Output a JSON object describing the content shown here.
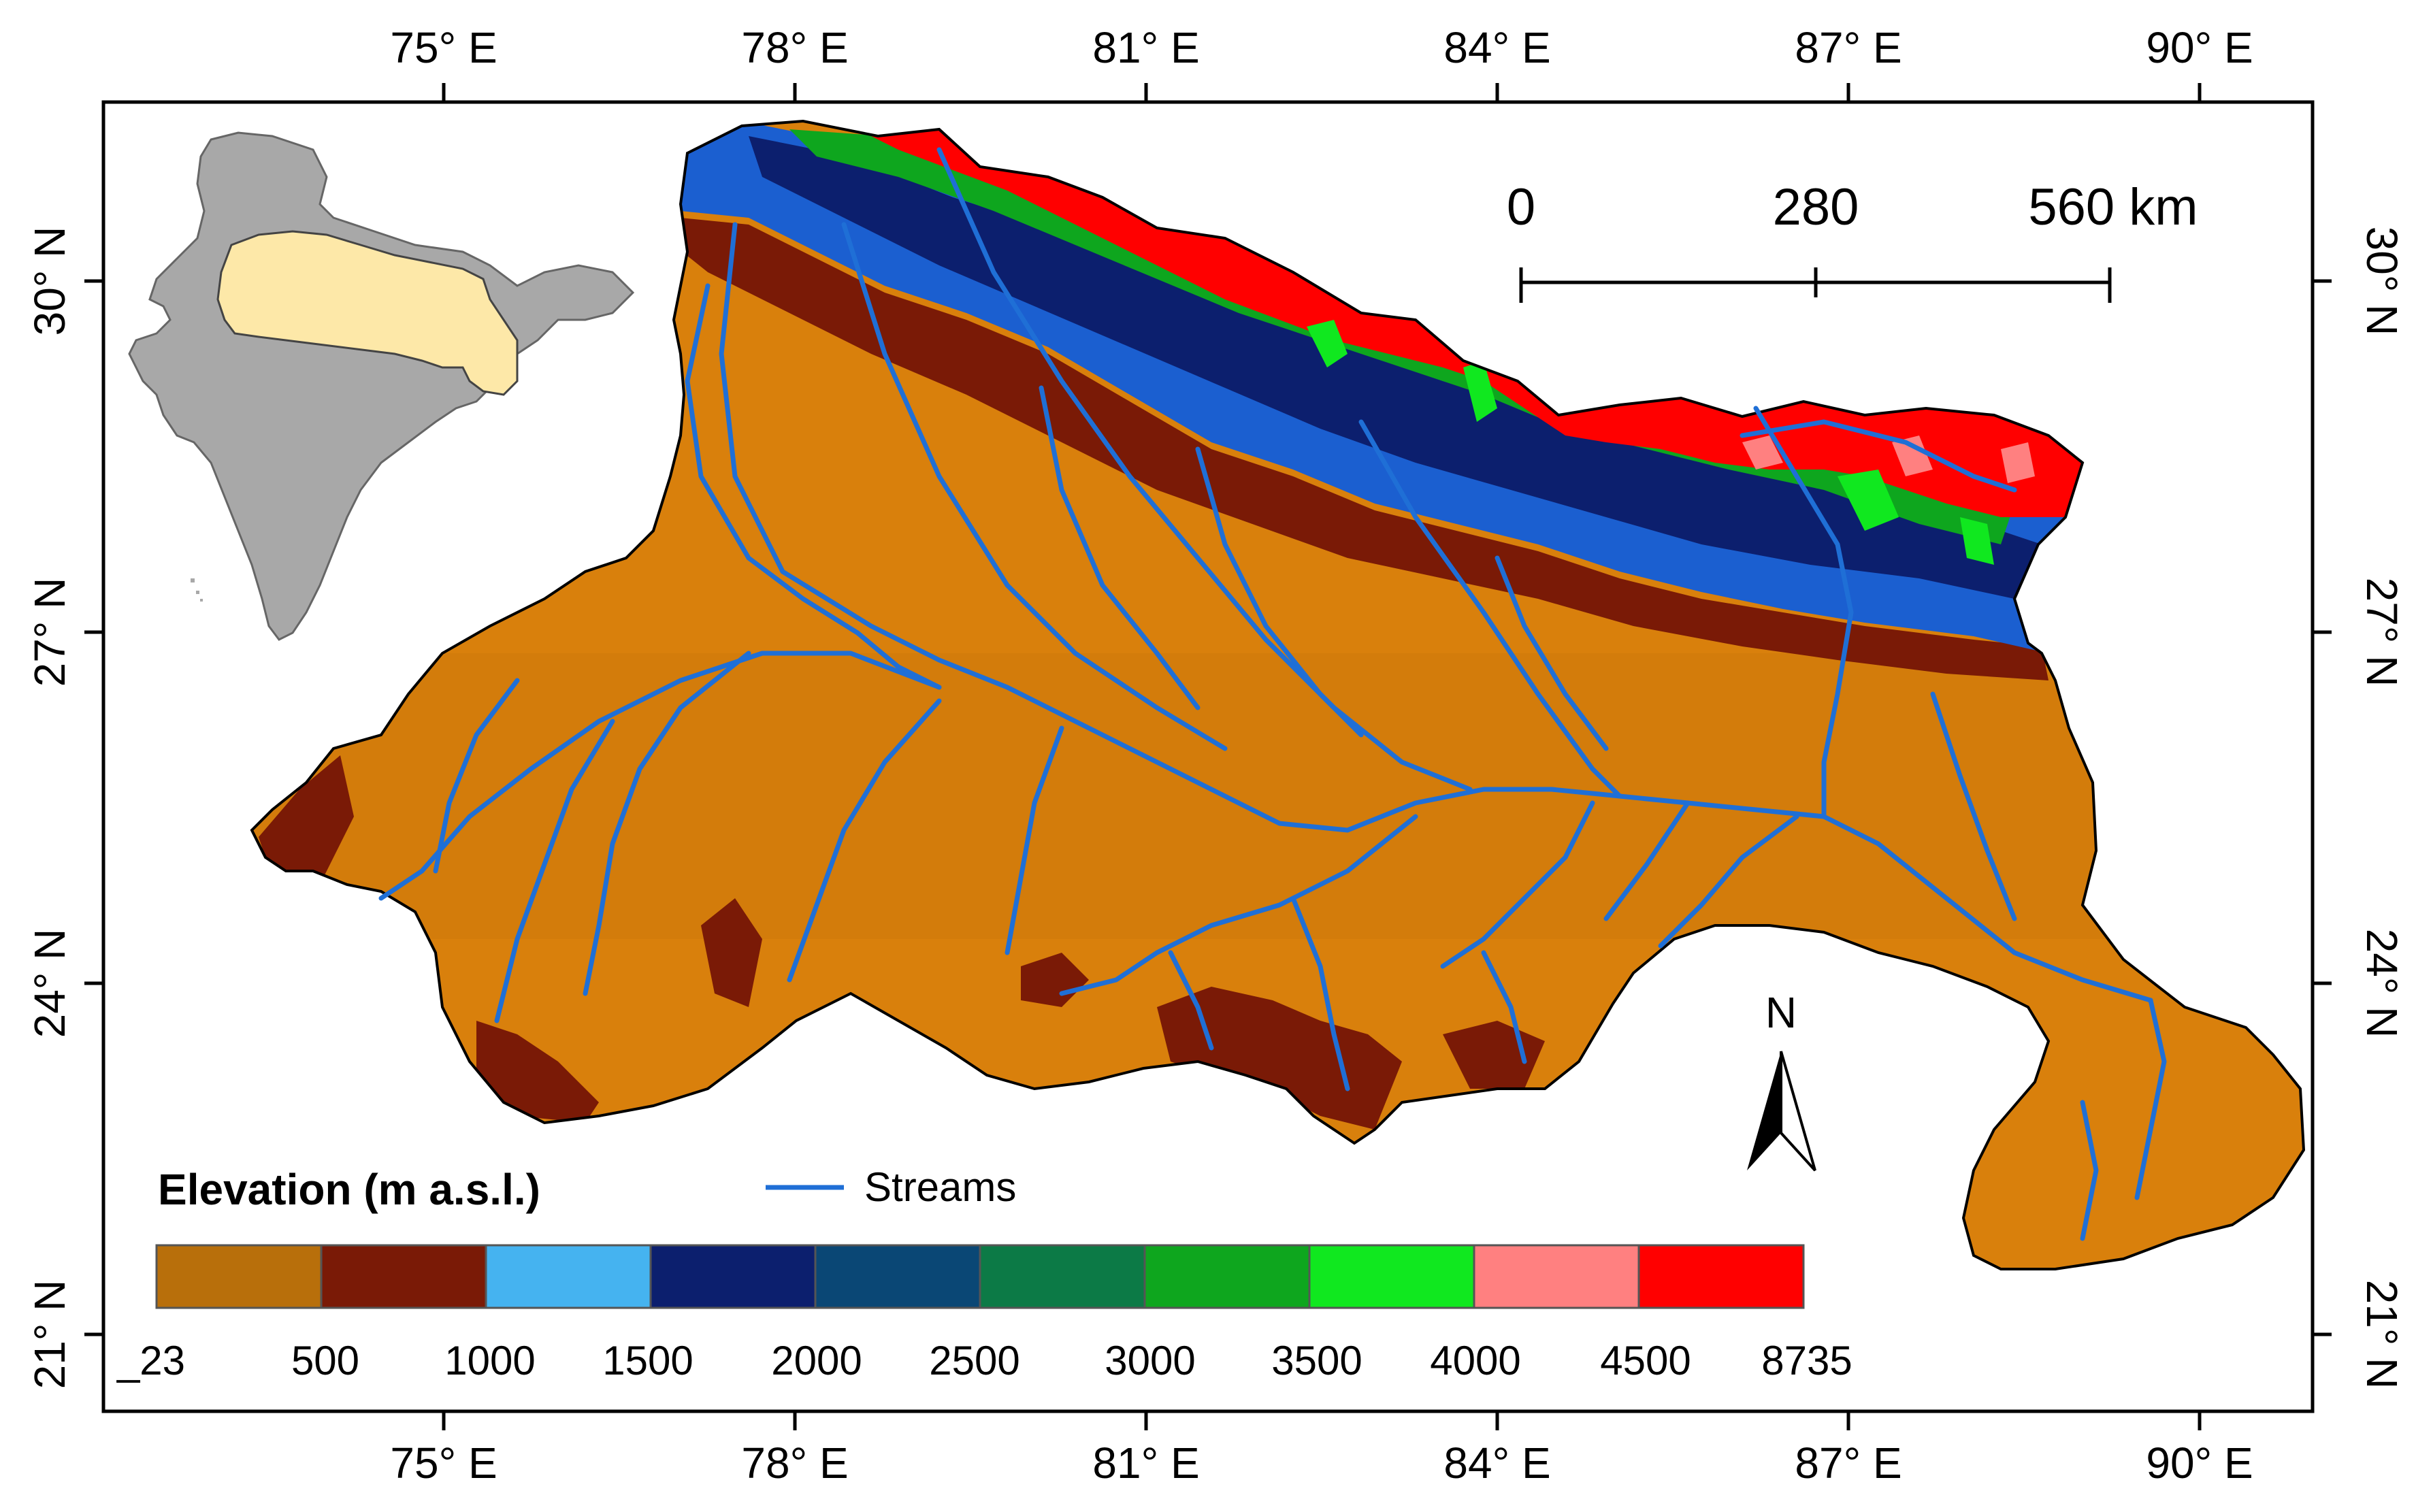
{
  "map": {
    "axes": {
      "top_bottom_labels": [
        "75° E",
        "78° E",
        "81° E",
        "84° E",
        "87° E",
        "90° E"
      ],
      "side_labels": [
        "30° N",
        "27° N",
        "24° N",
        "21° N"
      ]
    },
    "scale_bar": {
      "labels": [
        "0",
        "280",
        "560 km"
      ]
    },
    "north_arrow": {
      "label": "N"
    },
    "legend": {
      "title": "Elevation (m a.s.l.)",
      "streams_label": "Streams",
      "streams_color": "#1f6fd6",
      "class_colors": [
        "#b86f0b",
        "#7a1a06",
        "#45b3f0",
        "#0c1f6e",
        "#0a4775",
        "#0c7a46",
        "#0ea61e",
        "#10e81f",
        "#ff8080",
        "#ff0000"
      ],
      "break_labels": [
        "_23",
        "500",
        "1000",
        "1500",
        "2000",
        "2500",
        "3000",
        "3500",
        "4000",
        "4500",
        "8735"
      ]
    },
    "inset": {
      "country_fill": "#a8a8a8",
      "basin_fill": "#fde8a8"
    },
    "basin_colors": {
      "plain": "#d9800c",
      "low_hills": "#7a1a06",
      "himalaya_blue": "#1b5fd0",
      "peaks": "#ff0000"
    }
  }
}
